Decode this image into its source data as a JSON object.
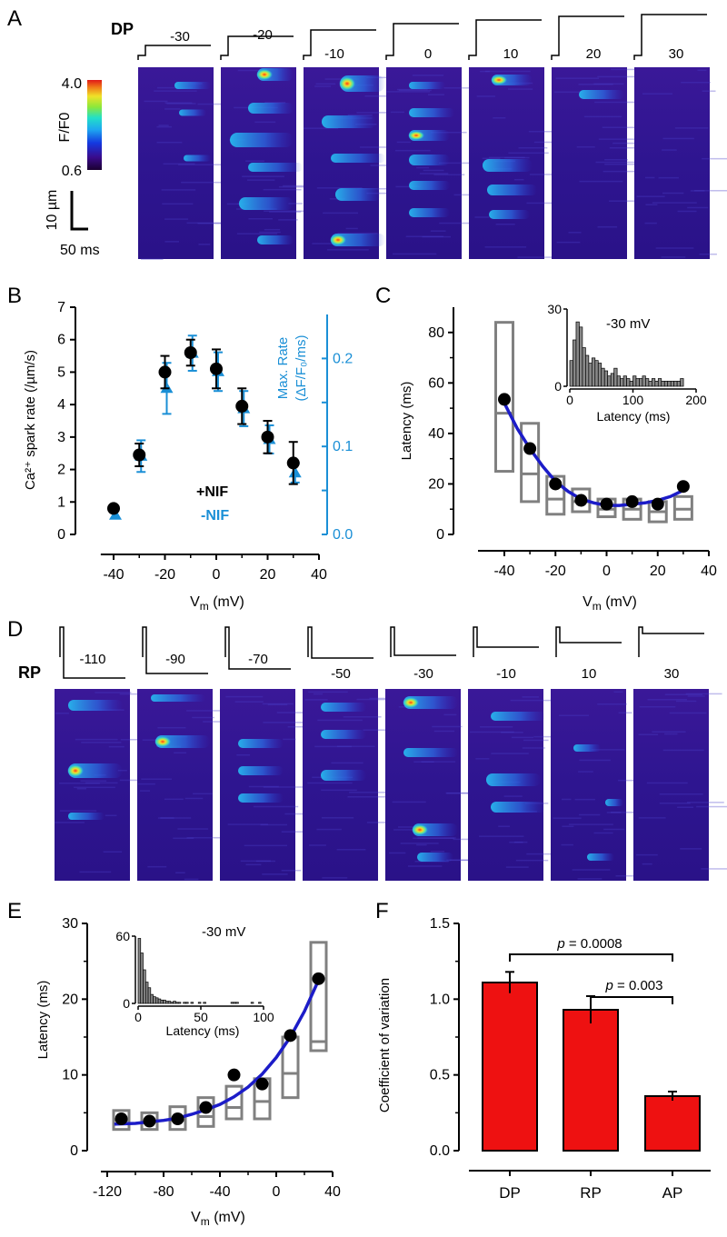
{
  "panels": {
    "a": "A",
    "b": "B",
    "c": "C",
    "d": "D",
    "e": "E",
    "f": "F"
  },
  "colorbar": {
    "max": "4.0",
    "min": "0.6",
    "label": "F/F0"
  },
  "scalebar": {
    "vertical": "10 µm",
    "horizontal": "50 ms"
  },
  "protocol_a": {
    "label": "DP",
    "steps": [
      "-30",
      "-20",
      "-10",
      "0",
      "10",
      "20",
      "30"
    ]
  },
  "protocol_d": {
    "label": "RP",
    "steps": [
      "-110",
      "-90",
      "-70",
      "-50",
      "-30",
      "-10",
      "10",
      "30"
    ]
  },
  "colors": {
    "black": "#000000",
    "blue": "#1a8fd6",
    "fit": "#1c1cc8",
    "box": "#808080",
    "bar": "#ee1111"
  },
  "chart_data": [
    {
      "id": "B",
      "type": "scatter",
      "xlabel_main": "V",
      "xlabel_sub": "m",
      "xlabel_unit": " (mV)",
      "ylabel": "Ca²⁺ spark rate (/µm/s)",
      "y2label_line1": "Max. Rate",
      "y2label_line2": "(ΔF/F₀/ms)",
      "xlim": [
        -40,
        40
      ],
      "ylim": [
        0,
        7
      ],
      "y2lim": [
        0.0,
        0.25
      ],
      "xticks": [
        "-40",
        "-20",
        "0",
        "20",
        "40"
      ],
      "yticks": [
        "0",
        "1",
        "2",
        "3",
        "4",
        "5",
        "6",
        "7"
      ],
      "y2ticks": [
        "0.0",
        "0.1",
        "0.2"
      ],
      "legend": [
        "+NIF",
        "-NIF"
      ],
      "series": [
        {
          "name": "+NIF",
          "x": [
            -40,
            -30,
            -20,
            -10,
            0,
            10,
            20,
            30
          ],
          "y": [
            0.8,
            2.45,
            5.0,
            5.6,
            5.1,
            3.95,
            3.0,
            2.2
          ],
          "err": [
            0.0,
            0.35,
            0.5,
            0.4,
            0.6,
            0.55,
            0.5,
            0.65
          ]
        },
        {
          "name": "-NIF",
          "axis": "right",
          "x": [
            -40,
            -30,
            -20,
            -10,
            0,
            10,
            20,
            30
          ],
          "y": [
            0.022,
            0.089,
            0.166,
            0.206,
            0.185,
            0.143,
            0.108,
            0.07
          ],
          "err": [
            0.0,
            0.018,
            0.029,
            0.02,
            0.022,
            0.02,
            0.016,
            0.011
          ]
        }
      ]
    },
    {
      "id": "C",
      "type": "scatter",
      "xlabel_main": "V",
      "xlabel_sub": "m",
      "xlabel_unit": " (mV)",
      "ylabel": "Latency (ms)",
      "xlim": [
        -40,
        40
      ],
      "ylim": [
        0,
        90
      ],
      "xticks": [
        "-40",
        "-20",
        "0",
        "20",
        "40"
      ],
      "yticks": [
        "0",
        "20",
        "40",
        "60",
        "80"
      ],
      "series": [
        {
          "name": "mean",
          "x": [
            -40,
            -30,
            -20,
            -10,
            0,
            10,
            20,
            30
          ],
          "y": [
            53.5,
            34,
            20,
            13.5,
            12,
            13,
            12,
            19
          ]
        }
      ],
      "boxes": [
        {
          "x": -40,
          "low": 25,
          "high": 84,
          "median": 48
        },
        {
          "x": -30,
          "low": 13,
          "high": 44,
          "median": 24
        },
        {
          "x": -20,
          "low": 8,
          "high": 23,
          "median": 14
        },
        {
          "x": -10,
          "low": 9,
          "high": 18,
          "median": 13
        },
        {
          "x": 0,
          "low": 7,
          "high": 14,
          "median": 10
        },
        {
          "x": 10,
          "low": 6,
          "high": 14,
          "median": 10
        },
        {
          "x": 20,
          "low": 5,
          "high": 13,
          "median": 9
        },
        {
          "x": 30,
          "low": 6,
          "high": 15,
          "median": 10
        }
      ],
      "fit": {
        "x": [
          -40,
          -35,
          -30,
          -25,
          -20,
          -15,
          -10,
          -5,
          0,
          5,
          10,
          15,
          20,
          25,
          30
        ],
        "y": [
          52,
          42,
          34,
          27,
          21,
          17,
          14,
          12.5,
          11.5,
          11.5,
          12,
          12.5,
          13.5,
          15,
          17.5
        ]
      },
      "inset": {
        "type": "bar",
        "label": "-30 mV",
        "xlabel": "Latency (ms)",
        "xlim": [
          0,
          200
        ],
        "ylim": [
          0,
          30
        ],
        "xticks": [
          "0",
          "100",
          "200"
        ],
        "yticks": [
          "0",
          "30"
        ],
        "bin_width": 5,
        "values": [
          10,
          18,
          25,
          23,
          15,
          12,
          9,
          11,
          10,
          9,
          7,
          6,
          4,
          5,
          7,
          4,
          3,
          4,
          3,
          2,
          4,
          3,
          3,
          4,
          3,
          2,
          3,
          2,
          3,
          2,
          2,
          2,
          2,
          2,
          2,
          3
        ]
      }
    },
    {
      "id": "E",
      "type": "scatter",
      "xlabel_main": "V",
      "xlabel_sub": "m",
      "xlabel_unit": " (mV)",
      "ylabel": "Latency (ms)",
      "xlim": [
        -120,
        40
      ],
      "ylim": [
        0,
        30
      ],
      "xticks": [
        "-120",
        "-80",
        "-40",
        "0",
        "40"
      ],
      "yticks": [
        "0",
        "10",
        "20",
        "30"
      ],
      "series": [
        {
          "name": "mean",
          "x": [
            -110,
            -90,
            -70,
            -50,
            -30,
            -10,
            10,
            30
          ],
          "y": [
            4.2,
            3.9,
            4.2,
            5.7,
            10,
            8.8,
            15.2,
            22.7
          ]
        }
      ],
      "boxes": [
        {
          "x": -110,
          "low": 2.8,
          "high": 5.3,
          "median": 4.0
        },
        {
          "x": -90,
          "low": 2.8,
          "high": 5.0,
          "median": 3.8
        },
        {
          "x": -70,
          "low": 2.8,
          "high": 5.8,
          "median": 4.0
        },
        {
          "x": -50,
          "low": 3.2,
          "high": 7.0,
          "median": 4.5
        },
        {
          "x": -30,
          "low": 4.2,
          "high": 8.5,
          "median": 5.7
        },
        {
          "x": -10,
          "low": 4.2,
          "high": 9.5,
          "median": 6.5
        },
        {
          "x": 10,
          "low": 7.0,
          "high": 15.0,
          "median": 10.2
        },
        {
          "x": 30,
          "low": 13.2,
          "high": 27.5,
          "median": 14.4
        }
      ],
      "fit": {
        "x": [
          -115,
          -100,
          -90,
          -80,
          -70,
          -60,
          -50,
          -40,
          -30,
          -20,
          -10,
          0,
          10,
          20,
          30
        ],
        "y": [
          3.5,
          3.6,
          3.8,
          4.0,
          4.3,
          4.8,
          5.4,
          6.1,
          7.1,
          8.4,
          10.1,
          12.3,
          15.0,
          18.4,
          22.5
        ]
      },
      "inset": {
        "type": "bar",
        "label": "-30 mV",
        "xlabel": "Latency (ms)",
        "xlim": [
          0,
          100
        ],
        "ylim": [
          0,
          60
        ],
        "xticks": [
          "0",
          "50",
          "100"
        ],
        "yticks": [
          "0",
          "60"
        ],
        "bin_width": 2,
        "values": [
          58,
          45,
          30,
          19,
          14,
          8,
          6,
          5,
          4,
          3,
          3,
          2,
          2,
          1,
          2,
          1,
          1,
          0,
          1,
          1,
          0,
          1,
          0,
          0,
          1,
          0,
          1,
          0,
          0,
          0,
          0,
          0,
          0,
          0,
          0,
          0,
          0,
          1,
          1,
          1,
          0,
          0,
          0,
          0,
          0,
          1,
          0,
          0,
          1,
          0
        ]
      }
    },
    {
      "id": "F",
      "type": "bar",
      "categories": [
        "DP",
        "RP",
        "AP"
      ],
      "values": [
        1.11,
        0.93,
        0.36
      ],
      "err": [
        0.07,
        0.09,
        0.03
      ],
      "ylabel": "Coefficient of variation",
      "ylim": [
        0.0,
        1.5
      ],
      "yticks": [
        "0.0",
        "0.5",
        "1.0",
        "1.5"
      ],
      "significance": [
        {
          "between": [
            "DP",
            "AP"
          ],
          "text": "= 0.0008"
        },
        {
          "between": [
            "RP",
            "AP"
          ],
          "text": "= 0.003"
        }
      ]
    }
  ]
}
